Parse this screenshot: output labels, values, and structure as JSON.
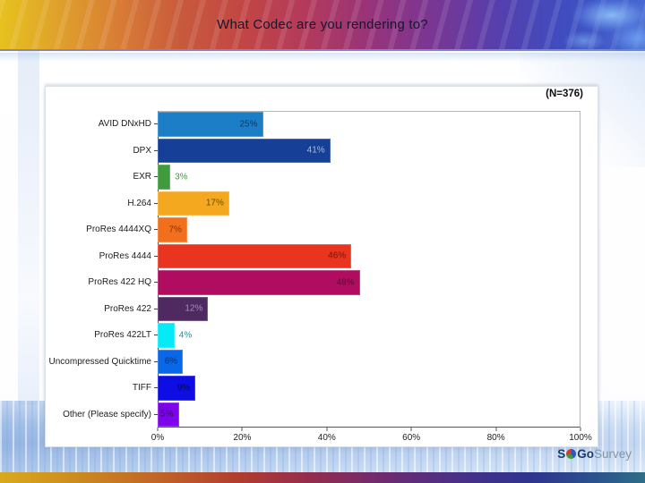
{
  "slide": {
    "title": "What Codec are you rendering to?"
  },
  "logo": {
    "s": "S",
    "go": "Go",
    "survey": "Survey"
  },
  "chart_data": {
    "type": "bar",
    "orientation": "horizontal",
    "title": "What Codec are you rendering to?",
    "sample_size": "(N=376)",
    "categories": [
      "AVID DNxHD",
      "DPX",
      "EXR",
      "H.264",
      "ProRes 4444XQ",
      "ProRes 4444",
      "ProRes 422 HQ",
      "ProRes 422",
      "ProRes 422LT",
      "Uncompressed Quicktime",
      "TIFF",
      "Other (Please specify)"
    ],
    "values": [
      25,
      41,
      3,
      17,
      7,
      46,
      48,
      12,
      4,
      6,
      9,
      5
    ],
    "value_labels": [
      "25%",
      "41%",
      "3%",
      "17%",
      "7%",
      "46%",
      "48%",
      "12%",
      "4%",
      "6%",
      "9%",
      "5%"
    ],
    "bar_colors": [
      "#1b7ec6",
      "#163f97",
      "#3f9b3b",
      "#f3a81f",
      "#f2701d",
      "#e93420",
      "#b00d60",
      "#4e2a60",
      "#06e9f7",
      "#0968ea",
      "#0d0de4",
      "#7d04ea"
    ],
    "value_label_colors": [
      "#103a63",
      "#a8bcdf",
      "#3f9b3b",
      "#6e4e05",
      "#8c3000",
      "#7c1205",
      "#550b32",
      "#a88cc2",
      "#0b9aa8",
      "#09306e",
      "#050a55",
      "#330a60"
    ],
    "value_label_inside": [
      true,
      true,
      false,
      true,
      true,
      true,
      true,
      true,
      false,
      true,
      true,
      true
    ],
    "x_tick_positions": [
      0,
      20,
      40,
      60,
      80,
      100
    ],
    "x_tick_labels": [
      "0%",
      "20%",
      "40%",
      "60%",
      "80%",
      "100%"
    ],
    "xlim": [
      0,
      100
    ],
    "grid": false,
    "legend": "none"
  }
}
